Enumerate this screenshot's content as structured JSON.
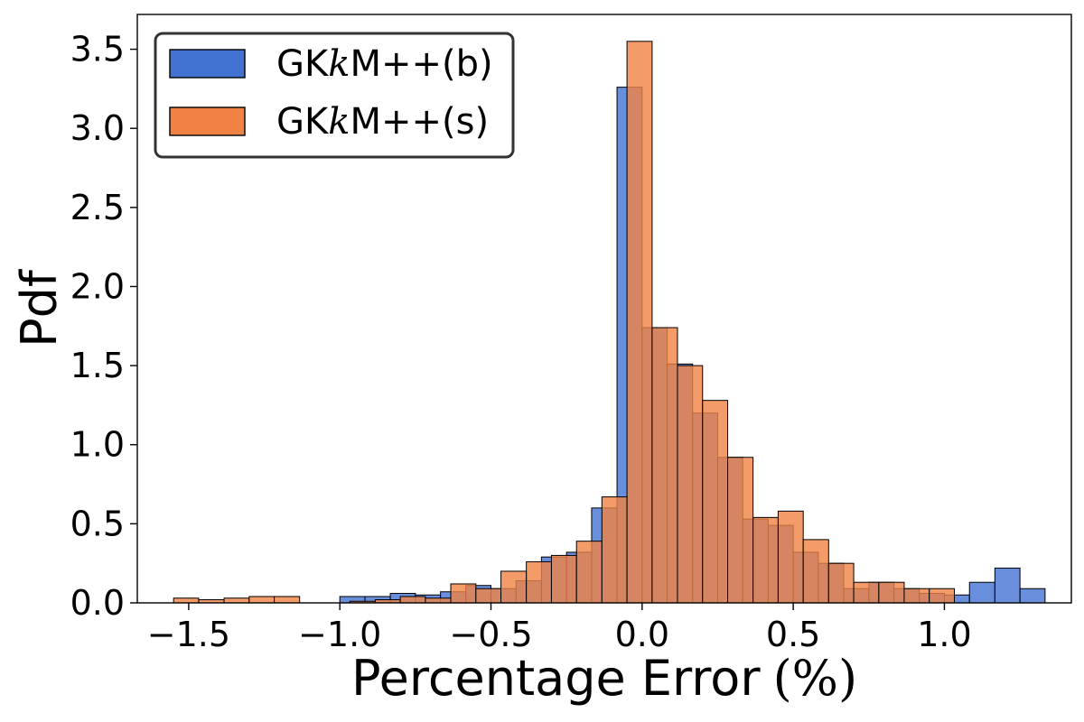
{
  "chart_data": {
    "type": "histogram",
    "xlabel": "Percentage Error",
    "xlabel_unit": "(%)",
    "ylabel": "Pdf",
    "xlim": [
      -1.67,
      1.42
    ],
    "ylim": [
      0,
      3.72
    ],
    "xticks": [
      -1.5,
      -1.0,
      -0.5,
      0.0,
      0.5,
      1.0
    ],
    "xtick_labels": [
      "−1.5",
      "−1.0",
      "−0.5",
      "0.0",
      "0.5",
      "1.0"
    ],
    "yticks": [
      0.0,
      0.5,
      1.0,
      1.5,
      2.0,
      2.5,
      3.0,
      3.5
    ],
    "ytick_labels": [
      "0.0",
      "0.5",
      "1.0",
      "1.5",
      "2.0",
      "2.5",
      "3.0",
      "3.5"
    ],
    "grid": false,
    "legend_position": "top-left",
    "series": [
      {
        "name_prefix": "GK",
        "name_italic": "k",
        "name_suffix": "M++(b)",
        "color": "#4472d2",
        "opacity": 0.8,
        "bins": [
          [
            -1.0,
            -0.917,
            0.04
          ],
          [
            -0.917,
            -0.833,
            0.04
          ],
          [
            -0.833,
            -0.75,
            0.06
          ],
          [
            -0.75,
            -0.667,
            0.05
          ],
          [
            -0.667,
            -0.583,
            0.07
          ],
          [
            -0.583,
            -0.5,
            0.11
          ],
          [
            -0.5,
            -0.417,
            0.09
          ],
          [
            -0.417,
            -0.333,
            0.14
          ],
          [
            -0.333,
            -0.25,
            0.29
          ],
          [
            -0.25,
            -0.167,
            0.32
          ],
          [
            -0.167,
            -0.083,
            0.6
          ],
          [
            -0.083,
            0.0,
            3.26
          ],
          [
            0.0,
            0.083,
            1.74
          ],
          [
            0.083,
            0.167,
            1.51
          ],
          [
            0.167,
            0.25,
            1.2
          ],
          [
            0.25,
            0.333,
            0.92
          ],
          [
            0.333,
            0.417,
            0.53
          ],
          [
            0.417,
            0.5,
            0.49
          ],
          [
            0.5,
            0.583,
            0.32
          ],
          [
            0.583,
            0.667,
            0.25
          ],
          [
            0.667,
            0.75,
            0.09
          ],
          [
            0.75,
            0.833,
            0.13
          ],
          [
            0.833,
            0.917,
            0.09
          ],
          [
            0.917,
            1.0,
            0.06
          ],
          [
            1.0,
            1.083,
            0.05
          ],
          [
            1.083,
            1.167,
            0.13
          ],
          [
            1.167,
            1.25,
            0.22
          ],
          [
            1.25,
            1.333,
            0.09
          ]
        ]
      },
      {
        "name_prefix": "GK",
        "name_italic": "k",
        "name_suffix": "M++(s)",
        "color": "#f08344",
        "opacity": 0.8,
        "bins": [
          [
            -1.55,
            -1.467,
            0.03
          ],
          [
            -1.467,
            -1.383,
            0.02
          ],
          [
            -1.383,
            -1.3,
            0.03
          ],
          [
            -1.3,
            -1.217,
            0.04
          ],
          [
            -1.217,
            -1.133,
            0.04
          ],
          [
            -0.967,
            -0.883,
            0.01
          ],
          [
            -0.883,
            -0.8,
            0.02
          ],
          [
            -0.8,
            -0.717,
            0.04
          ],
          [
            -0.717,
            -0.633,
            0.03
          ],
          [
            -0.633,
            -0.55,
            0.12
          ],
          [
            -0.55,
            -0.467,
            0.09
          ],
          [
            -0.467,
            -0.383,
            0.2
          ],
          [
            -0.383,
            -0.3,
            0.26
          ],
          [
            -0.3,
            -0.217,
            0.3
          ],
          [
            -0.217,
            -0.133,
            0.39
          ],
          [
            -0.133,
            -0.05,
            0.67
          ],
          [
            -0.05,
            0.033,
            3.55
          ],
          [
            0.033,
            0.117,
            1.74
          ],
          [
            0.117,
            0.2,
            1.5
          ],
          [
            0.2,
            0.283,
            1.28
          ],
          [
            0.283,
            0.367,
            0.92
          ],
          [
            0.367,
            0.45,
            0.54
          ],
          [
            0.45,
            0.533,
            0.58
          ],
          [
            0.533,
            0.617,
            0.4
          ],
          [
            0.617,
            0.7,
            0.25
          ],
          [
            0.7,
            0.783,
            0.13
          ],
          [
            0.783,
            0.867,
            0.13
          ],
          [
            0.867,
            0.95,
            0.09
          ],
          [
            0.95,
            1.033,
            0.09
          ]
        ]
      }
    ]
  }
}
